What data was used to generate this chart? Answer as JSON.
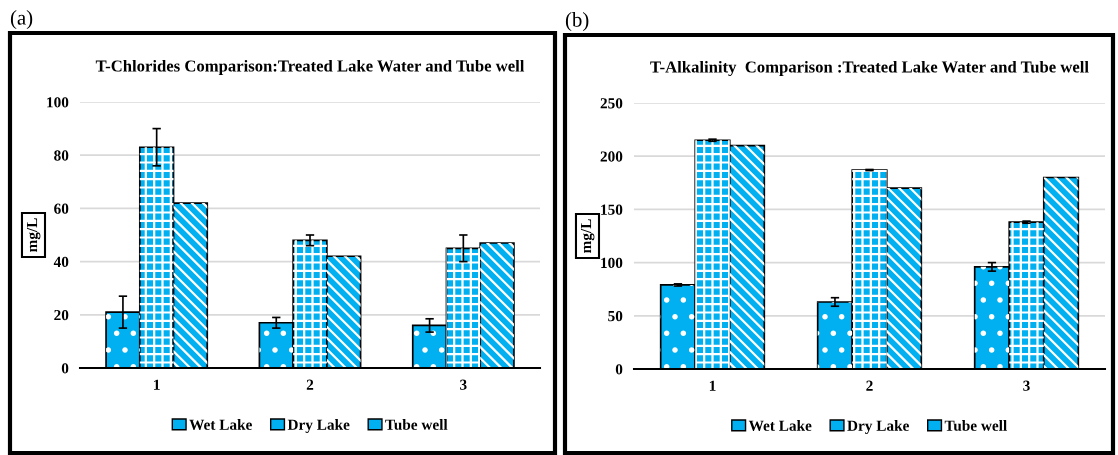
{
  "chart_data": [
    {
      "type": "bar",
      "title": "T-Chlorides Comparison:Treated Lake Water and Tube well",
      "ylabel": "mg/L",
      "annotations": [
        "(a)"
      ],
      "categories": [
        "1",
        "2",
        "3"
      ],
      "series": [
        {
          "name": "Wet Lake",
          "color": "#00b0f0",
          "values": [
            21,
            17,
            16
          ],
          "errors": [
            6,
            2,
            2.5
          ]
        },
        {
          "name": "Dry Lake",
          "color": "#00b0f0",
          "values": [
            83,
            48,
            45
          ],
          "errors": [
            7,
            2,
            5
          ]
        },
        {
          "name": "Tube well",
          "color": "#00b0f0",
          "values": [
            62,
            42,
            47
          ]
        }
      ],
      "ylim": [
        0,
        100
      ],
      "yticks": [
        0,
        20,
        40,
        60,
        80,
        100
      ],
      "grid": "y",
      "legend": "bottom"
    },
    {
      "type": "bar",
      "title": "T-Alkalinity  Comparison :Treated Lake Water and Tube well",
      "ylabel": "mg/L",
      "annotations": [
        "(b)"
      ],
      "categories": [
        "1",
        "2",
        "3"
      ],
      "series": [
        {
          "name": "Wet Lake",
          "color": "#00b0f0",
          "values": [
            79,
            63,
            96
          ],
          "errors": [
            1,
            4,
            4
          ]
        },
        {
          "name": "Dry Lake",
          "color": "#00b0f0",
          "values": [
            215,
            187,
            138
          ],
          "errors": [
            1,
            0.5,
            1
          ]
        },
        {
          "name": "Tube well",
          "color": "#00b0f0",
          "values": [
            210,
            170,
            180
          ]
        }
      ],
      "ylim": [
        0,
        250
      ],
      "yticks": [
        0,
        50,
        100,
        150,
        200,
        250
      ],
      "grid": "y",
      "legend": "bottom"
    }
  ]
}
